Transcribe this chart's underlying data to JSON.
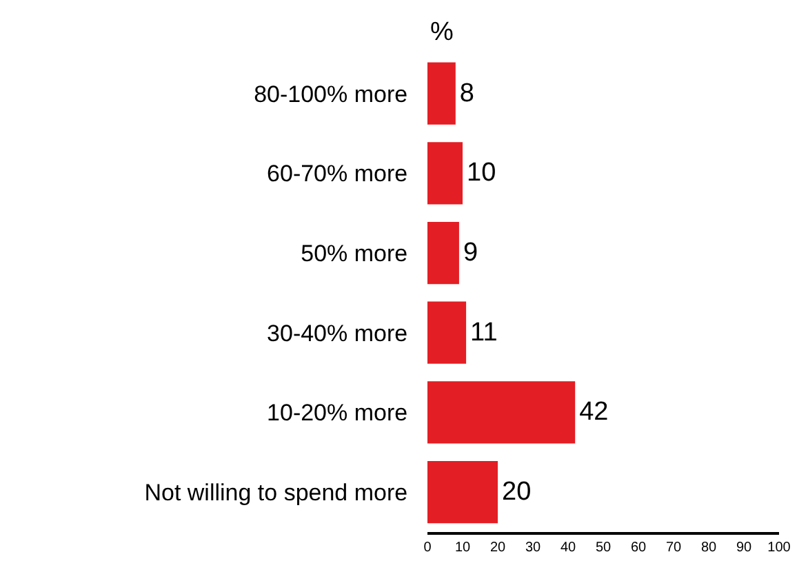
{
  "chart_data": {
    "type": "bar",
    "orientation": "horizontal",
    "xlabel": "%",
    "categories": [
      "80-100% more",
      "60-70% more",
      "50% more",
      "30-40% more",
      "10-20% more",
      "Not willing to spend more"
    ],
    "values": [
      8,
      10,
      9,
      11,
      42,
      20
    ],
    "color": "#e31e24",
    "xlim": [
      0,
      100
    ],
    "xticks": [
      0,
      10,
      20,
      30,
      40,
      50,
      60,
      70,
      80,
      90,
      100
    ],
    "data_labels": true
  }
}
